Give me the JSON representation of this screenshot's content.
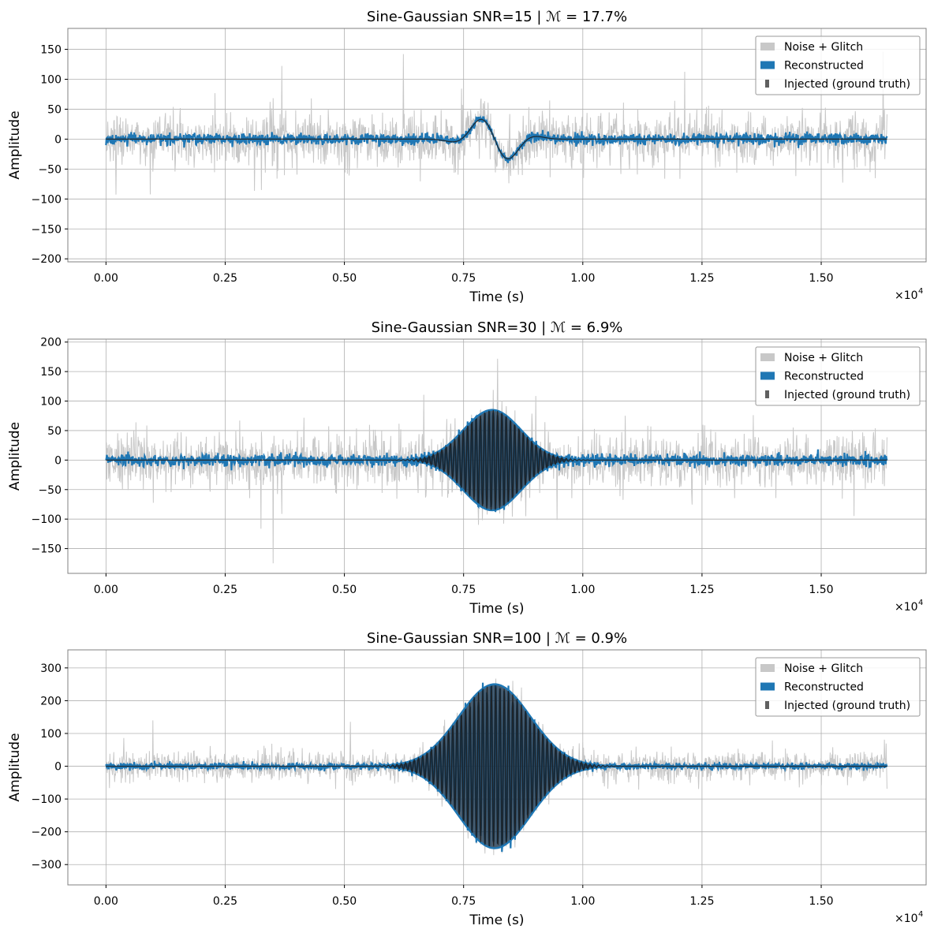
{
  "chart_data": [
    {
      "type": "line",
      "title": "Sine-Gaussian  SNR=15  |  ℳ = 17.7%",
      "xlabel": "Time (s)",
      "ylabel": "Amplitude",
      "x_multiplier": "×10",
      "x_multiplier_exp": "4",
      "xlim": [
        -0.08,
        1.72
      ],
      "ylim": [
        -205,
        185
      ],
      "xticks": [
        0.0,
        0.25,
        0.5,
        0.75,
        1.0,
        1.25,
        1.5
      ],
      "xtick_labels": [
        "0.00",
        "0.25",
        "0.50",
        "0.75",
        "1.00",
        "1.25",
        "1.50"
      ],
      "yticks": [
        -200,
        -150,
        -100,
        -50,
        0,
        50,
        100,
        150
      ],
      "ytick_labels": [
        "−200",
        "−150",
        "−100",
        "−50",
        "0",
        "50",
        "100",
        "150"
      ],
      "grid": true,
      "legend_position": "upper right",
      "legend": [
        "Noise + Glitch",
        "Reconstructed",
        "Injected (ground truth)"
      ],
      "series": [
        {
          "name": "Noise + Glitch",
          "color": "#c8c8c8",
          "x_range": [
            0.0,
            1.638
          ],
          "noise_std": 40,
          "noise_peak": 170
        },
        {
          "name": "Reconstructed",
          "color": "#1f77b4",
          "x_range": [
            0.0,
            1.638
          ],
          "residual_noise": 8
        },
        {
          "name": "Injected (ground truth)",
          "color": "#202020",
          "x_range": [
            0.0,
            1.638
          ]
        }
      ],
      "signal": {
        "type": "sine-gaussian",
        "center": 0.815,
        "amplitude": 42,
        "width": 0.045,
        "period": 0.14
      }
    },
    {
      "type": "line",
      "title": "Sine-Gaussian  SNR=30  |  ℳ = 6.9%",
      "xlabel": "Time (s)",
      "ylabel": "Amplitude",
      "x_multiplier": "×10",
      "x_multiplier_exp": "4",
      "xlim": [
        -0.08,
        1.72
      ],
      "ylim": [
        -192,
        205
      ],
      "xticks": [
        0.0,
        0.25,
        0.5,
        0.75,
        1.0,
        1.25,
        1.5
      ],
      "xtick_labels": [
        "0.00",
        "0.25",
        "0.50",
        "0.75",
        "1.00",
        "1.25",
        "1.50"
      ],
      "yticks": [
        -150,
        -100,
        -50,
        0,
        50,
        100,
        150,
        200
      ],
      "ytick_labels": [
        "−150",
        "−100",
        "−50",
        "0",
        "50",
        "100",
        "150",
        "200"
      ],
      "grid": true,
      "legend_position": "upper right",
      "legend": [
        "Noise + Glitch",
        "Reconstructed",
        "Injected (ground truth)"
      ],
      "series": [
        {
          "name": "Noise + Glitch",
          "color": "#c8c8c8",
          "x_range": [
            0.0,
            1.638
          ],
          "noise_std": 40,
          "noise_peak": 175
        },
        {
          "name": "Reconstructed",
          "color": "#1f77b4",
          "x_range": [
            0.0,
            1.638
          ],
          "residual_noise": 8
        },
        {
          "name": "Injected (ground truth)",
          "color": "#202020",
          "x_range": [
            0.0,
            1.638
          ]
        }
      ],
      "signal": {
        "type": "sine-gaussian",
        "center": 0.81,
        "amplitude": 85,
        "width": 0.06,
        "period": 0.009
      }
    },
    {
      "type": "line",
      "title": "Sine-Gaussian  SNR=100  |  ℳ = 0.9%",
      "xlabel": "Time (s)",
      "ylabel": "Amplitude",
      "x_multiplier": "×10",
      "x_multiplier_exp": "4",
      "xlim": [
        -0.08,
        1.72
      ],
      "ylim": [
        -362,
        355
      ],
      "xticks": [
        0.0,
        0.25,
        0.5,
        0.75,
        1.0,
        1.25,
        1.5
      ],
      "xtick_labels": [
        "0.00",
        "0.25",
        "0.50",
        "0.75",
        "1.00",
        "1.25",
        "1.50"
      ],
      "yticks": [
        -300,
        -200,
        -100,
        0,
        100,
        200,
        300
      ],
      "ytick_labels": [
        "−300",
        "−200",
        "−100",
        "0",
        "100",
        "200",
        "300"
      ],
      "grid": true,
      "legend_position": "upper right",
      "legend": [
        "Noise + Glitch",
        "Reconstructed",
        "Injected (ground truth)"
      ],
      "series": [
        {
          "name": "Noise + Glitch",
          "color": "#c8c8c8",
          "x_range": [
            0.0,
            1.638
          ],
          "noise_std": 40,
          "noise_peak": 140
        },
        {
          "name": "Reconstructed",
          "color": "#1f77b4",
          "x_range": [
            0.0,
            1.638
          ],
          "residual_noise": 8
        },
        {
          "name": "Injected (ground truth)",
          "color": "#202020",
          "x_range": [
            0.0,
            1.638
          ]
        }
      ],
      "signal": {
        "type": "sine-gaussian",
        "center": 0.815,
        "amplitude": 250,
        "width": 0.075,
        "period": 0.009
      }
    }
  ]
}
